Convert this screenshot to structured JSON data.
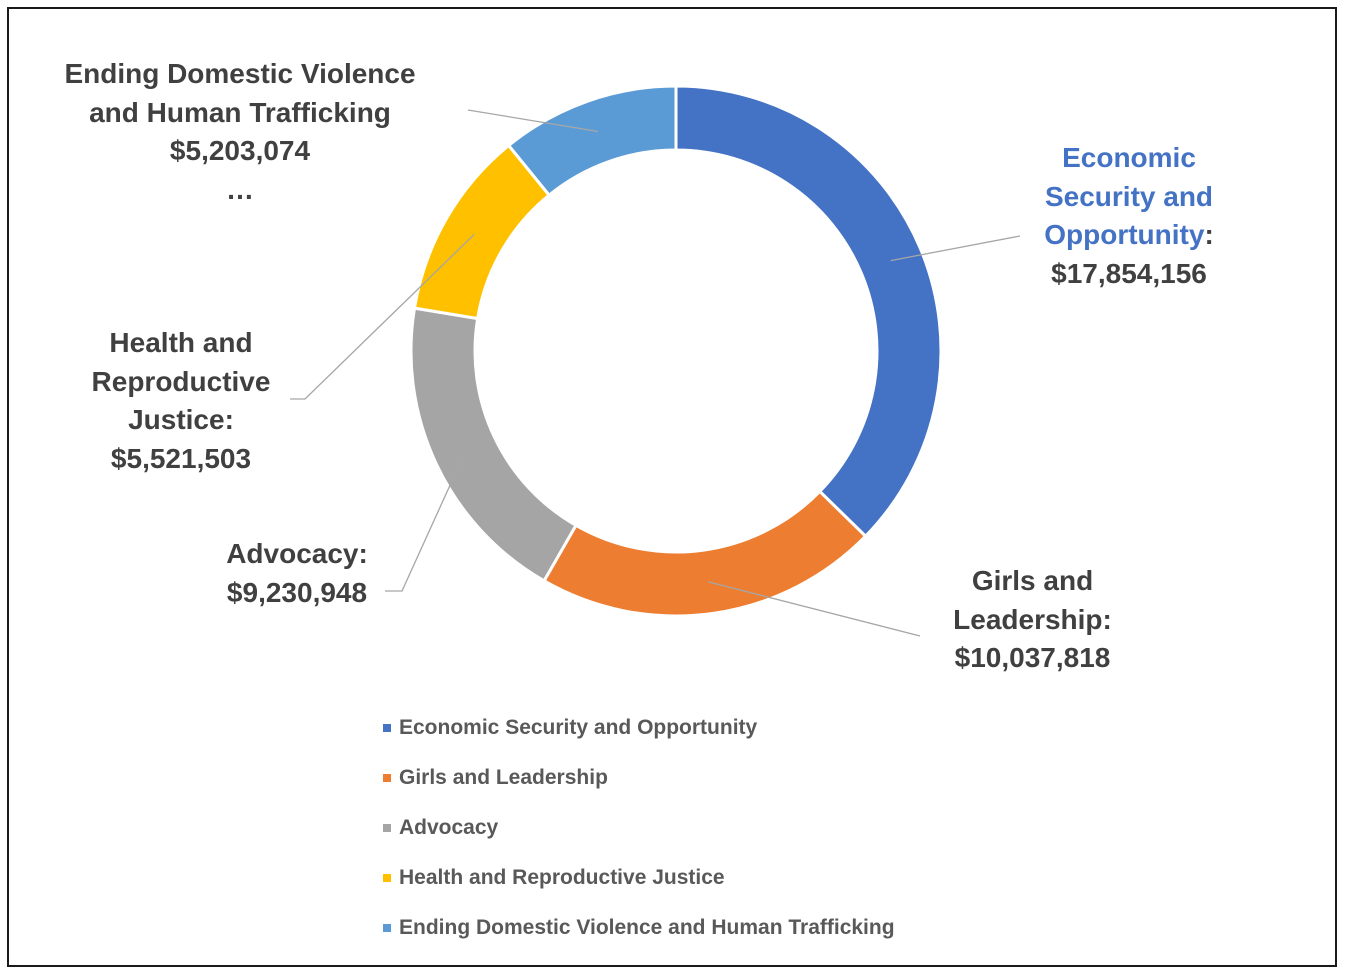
{
  "chart_data": {
    "type": "pie",
    "donut": true,
    "title": "",
    "legend_position": "bottom",
    "categories": [
      "Economic Security and Opportunity",
      "Girls and Leadership",
      "Advocacy",
      "Health and Reproductive Justice",
      "Ending Domestic Violence and Human Trafficking"
    ],
    "values": [
      17854156,
      10037818,
      9230948,
      5521503,
      5203074
    ],
    "colors": [
      "#4472c4",
      "#ed7d31",
      "#a5a5a5",
      "#ffc000",
      "#5b9bd5"
    ],
    "data_labels": [
      {
        "lines": [
          "Economic",
          "Security and",
          "Opportunity:",
          "$17,854,156"
        ]
      },
      {
        "lines": [
          "Girls and",
          "Leadership:",
          "$10,037,818"
        ]
      },
      {
        "lines": [
          "Advocacy:",
          "$9,230,948"
        ]
      },
      {
        "lines": [
          "Health and",
          "Reproductive",
          "Justice:",
          "$5,521,503"
        ]
      },
      {
        "lines": [
          "Ending Domestic Violence",
          "and Human Trafficking",
          "$5,203,074",
          "…"
        ]
      }
    ]
  }
}
